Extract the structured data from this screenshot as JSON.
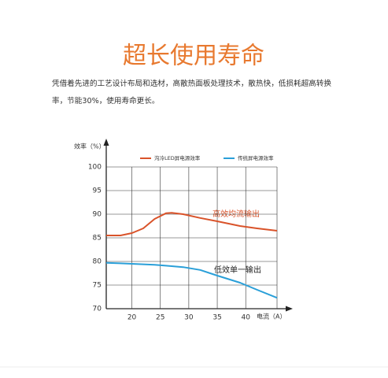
{
  "header": {
    "title": "超长使用寿命",
    "description": [
      "凭借着先进的工艺设计布局和选材，高散热面板处理技术，散热快，低损耗超高转换",
      "率，节能30%，使用寿命更长。"
    ]
  },
  "chart_data": {
    "type": "line",
    "ylabel": "效率（%）",
    "xlabel": "电流（A）",
    "x": [
      15.5,
      18,
      20,
      22,
      24,
      26,
      27,
      29,
      32,
      35,
      39,
      42,
      45.5
    ],
    "series": [
      {
        "name": "沟冷LED屏电源效率",
        "color": "#d9532a",
        "values": [
          85.5,
          85.5,
          86,
          87,
          89,
          90.2,
          90.3,
          90,
          89.2,
          88.5,
          87.5,
          87,
          86.5
        ]
      },
      {
        "name": "传统屏电源效率",
        "color": "#2a9fd8",
        "values": [
          79.7,
          79.6,
          79.5,
          79.4,
          79.3,
          79.1,
          79,
          78.8,
          78.2,
          77,
          75.5,
          74,
          72.3
        ]
      }
    ],
    "annotations": [
      "高效均流输出",
      "低效单一输出"
    ],
    "xlim": [
      15.5,
      45.5
    ],
    "xticks": [
      20,
      25,
      30,
      35,
      40
    ],
    "ylim": [
      70,
      100
    ],
    "yticks": [
      70,
      75,
      80,
      85,
      90,
      95,
      100
    ],
    "grid": true
  }
}
